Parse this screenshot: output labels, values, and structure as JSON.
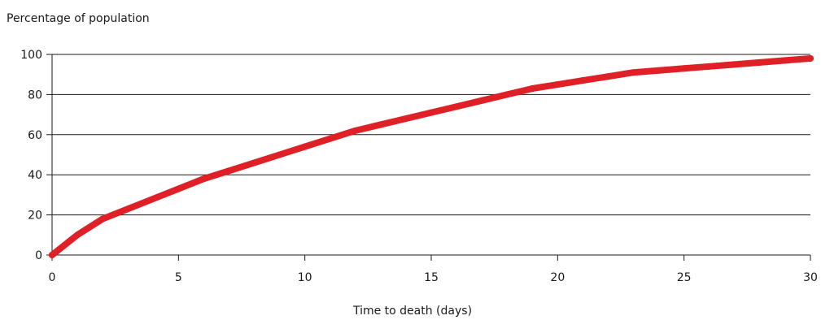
{
  "chart_data": {
    "type": "line",
    "title": "",
    "ylabel": "Percentage of population",
    "xlabel": "Time to death (days)",
    "xlim": [
      0,
      30
    ],
    "ylim": [
      0,
      100
    ],
    "xticks": [
      0,
      5,
      10,
      15,
      20,
      25,
      30
    ],
    "yticks": [
      0,
      20,
      40,
      60,
      80,
      100
    ],
    "xtick_labels": [
      "0",
      "5",
      "10",
      "15",
      "20",
      "25",
      "30"
    ],
    "ytick_labels": [
      "0",
      "20",
      "40",
      "60",
      "80",
      "100"
    ],
    "grid": "horizontal",
    "legend": "none",
    "line_color": "#e02027",
    "series": [
      {
        "x": [
          0,
          1,
          2,
          3,
          4,
          5,
          6,
          7,
          8,
          9,
          10,
          11,
          12,
          13,
          14,
          15,
          16,
          17,
          18,
          19,
          20,
          21,
          22,
          23,
          24,
          25,
          26,
          27,
          28,
          29,
          30
        ],
        "values": [
          0,
          10,
          18,
          23,
          28,
          33,
          38,
          42,
          46,
          50,
          54,
          58,
          62,
          65,
          68,
          71,
          74,
          77,
          80,
          83,
          85,
          87,
          89,
          91,
          92,
          93,
          94,
          95,
          96,
          97,
          98
        ]
      }
    ]
  }
}
